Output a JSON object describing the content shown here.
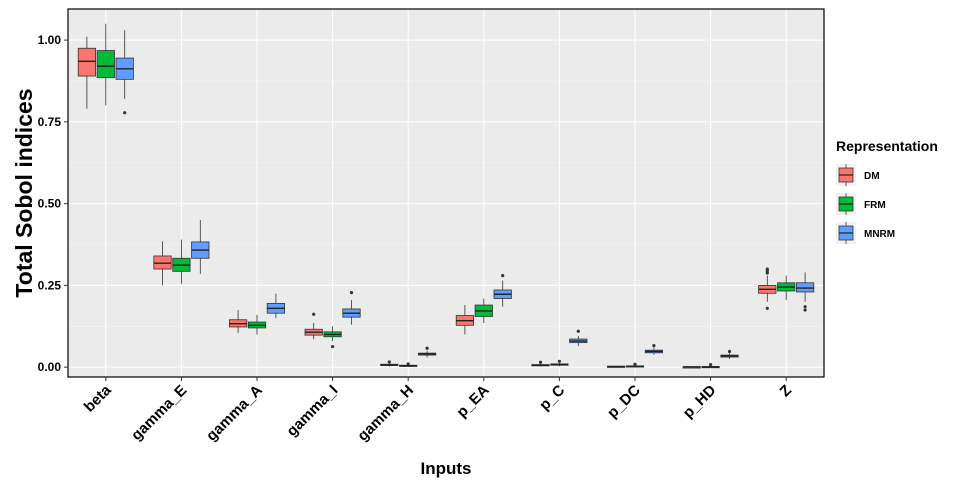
{
  "chart_data": {
    "type": "boxplot",
    "title": "",
    "xlabel": "Inputs",
    "ylabel": "Total Sobol indices",
    "ylim": [
      -0.03,
      1.095
    ],
    "yticks": [
      0.0,
      0.25,
      0.5,
      0.75,
      1.0
    ],
    "ytick_labels": [
      "0.00",
      "0.25",
      "0.50",
      "0.75",
      "1.00"
    ],
    "grid": true,
    "legend": {
      "title": "Representation",
      "position": "right"
    },
    "categories": [
      "beta",
      "gamma_E",
      "gamma_A",
      "gamma_I",
      "gamma_H",
      "p_EA",
      "p_C",
      "p_DC",
      "p_HD",
      "Z"
    ],
    "series": [
      {
        "name": "DM",
        "color": "#F8766D",
        "boxes": [
          {
            "min": 0.79,
            "q1": 0.89,
            "median": 0.935,
            "q3": 0.975,
            "max": 1.01,
            "outliers": []
          },
          {
            "min": 0.25,
            "q1": 0.3,
            "median": 0.318,
            "q3": 0.34,
            "max": 0.385,
            "outliers": []
          },
          {
            "min": 0.105,
            "q1": 0.123,
            "median": 0.133,
            "q3": 0.145,
            "max": 0.175,
            "outliers": []
          },
          {
            "min": 0.085,
            "q1": 0.098,
            "median": 0.107,
            "q3": 0.116,
            "max": 0.135,
            "outliers": [
              0.162
            ]
          },
          {
            "min": 0.002,
            "q1": 0.005,
            "median": 0.007,
            "q3": 0.009,
            "max": 0.012,
            "outliers": [
              0.016
            ]
          },
          {
            "min": 0.1,
            "q1": 0.128,
            "median": 0.142,
            "q3": 0.158,
            "max": 0.19,
            "outliers": []
          },
          {
            "min": 0.002,
            "q1": 0.004,
            "median": 0.006,
            "q3": 0.008,
            "max": 0.011,
            "outliers": [
              0.015
            ]
          },
          {
            "min": 0.0,
            "q1": 0.001,
            "median": 0.002,
            "q3": 0.003,
            "max": 0.004,
            "outliers": []
          },
          {
            "min": 0.0,
            "q1": 0.0,
            "median": 0.001,
            "q3": 0.001,
            "max": 0.002,
            "outliers": []
          },
          {
            "min": 0.2,
            "q1": 0.226,
            "median": 0.238,
            "q3": 0.25,
            "max": 0.28,
            "outliers": [
              0.18,
              0.288,
              0.295,
              0.3
            ]
          }
        ]
      },
      {
        "name": "FRM",
        "color": "#00BA38",
        "boxes": [
          {
            "min": 0.8,
            "q1": 0.885,
            "median": 0.92,
            "q3": 0.968,
            "max": 1.05,
            "outliers": []
          },
          {
            "min": 0.255,
            "q1": 0.293,
            "median": 0.312,
            "q3": 0.333,
            "max": 0.39,
            "outliers": []
          },
          {
            "min": 0.1,
            "q1": 0.12,
            "median": 0.128,
            "q3": 0.138,
            "max": 0.16,
            "outliers": []
          },
          {
            "min": 0.08,
            "q1": 0.093,
            "median": 0.1,
            "q3": 0.108,
            "max": 0.125,
            "outliers": [
              0.063
            ]
          },
          {
            "min": 0.001,
            "q1": 0.003,
            "median": 0.004,
            "q3": 0.006,
            "max": 0.008,
            "outliers": [
              0.01
            ]
          },
          {
            "min": 0.135,
            "q1": 0.155,
            "median": 0.172,
            "q3": 0.19,
            "max": 0.21,
            "outliers": []
          },
          {
            "min": 0.003,
            "q1": 0.006,
            "median": 0.008,
            "q3": 0.01,
            "max": 0.013,
            "outliers": [
              0.018
            ]
          },
          {
            "min": 0.0,
            "q1": 0.002,
            "median": 0.003,
            "q3": 0.004,
            "max": 0.006,
            "outliers": [
              0.009
            ]
          },
          {
            "min": 0.0,
            "q1": 0.001,
            "median": 0.001,
            "q3": 0.002,
            "max": 0.003,
            "outliers": [
              0.008
            ]
          },
          {
            "min": 0.205,
            "q1": 0.233,
            "median": 0.245,
            "q3": 0.258,
            "max": 0.28,
            "outliers": []
          }
        ]
      },
      {
        "name": "MNRM",
        "color": "#619CFF",
        "boxes": [
          {
            "min": 0.82,
            "q1": 0.88,
            "median": 0.912,
            "q3": 0.945,
            "max": 1.03,
            "outliers": [
              0.778
            ]
          },
          {
            "min": 0.285,
            "q1": 0.333,
            "median": 0.358,
            "q3": 0.383,
            "max": 0.45,
            "outliers": []
          },
          {
            "min": 0.15,
            "q1": 0.165,
            "median": 0.18,
            "q3": 0.195,
            "max": 0.225,
            "outliers": []
          },
          {
            "min": 0.13,
            "q1": 0.153,
            "median": 0.165,
            "q3": 0.178,
            "max": 0.205,
            "outliers": [
              0.228
            ]
          },
          {
            "min": 0.03,
            "q1": 0.037,
            "median": 0.04,
            "q3": 0.043,
            "max": 0.05,
            "outliers": [
              0.058
            ]
          },
          {
            "min": 0.185,
            "q1": 0.21,
            "median": 0.223,
            "q3": 0.236,
            "max": 0.265,
            "outliers": [
              0.28
            ]
          },
          {
            "min": 0.065,
            "q1": 0.075,
            "median": 0.08,
            "q3": 0.086,
            "max": 0.095,
            "outliers": [
              0.11
            ]
          },
          {
            "min": 0.038,
            "q1": 0.044,
            "median": 0.048,
            "q3": 0.052,
            "max": 0.06,
            "outliers": [
              0.066
            ]
          },
          {
            "min": 0.025,
            "q1": 0.031,
            "median": 0.034,
            "q3": 0.037,
            "max": 0.042,
            "outliers": [
              0.048
            ]
          },
          {
            "min": 0.2,
            "q1": 0.23,
            "median": 0.242,
            "q3": 0.258,
            "max": 0.29,
            "outliers": [
              0.175,
              0.185
            ]
          }
        ]
      }
    ]
  }
}
